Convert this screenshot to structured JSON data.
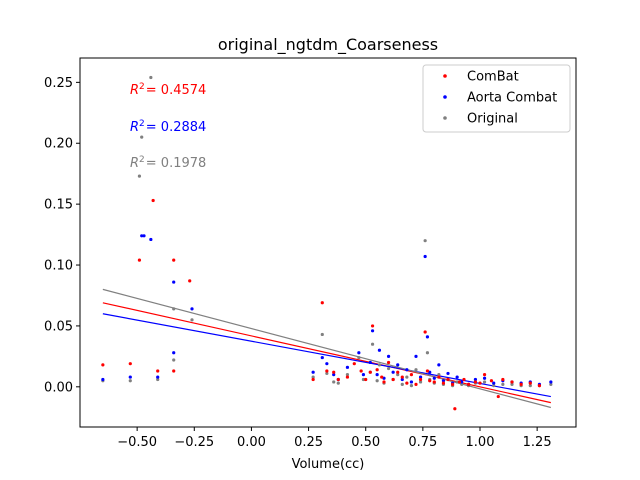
{
  "chart_data": {
    "type": "scatter",
    "title": "original_ngtdm_Coarseness",
    "xlabel": "Volume(cc)",
    "ylabel": "",
    "xlim": [
      -0.75,
      1.42
    ],
    "ylim": [
      -0.033,
      0.27
    ],
    "x_ticks": [
      -0.5,
      -0.25,
      0.0,
      0.25,
      0.5,
      0.75,
      1.0,
      1.25
    ],
    "x_tick_labels": [
      "−0.50",
      "−0.25",
      "0.00",
      "0.25",
      "0.50",
      "0.75",
      "1.00",
      "1.25"
    ],
    "y_ticks": [
      0.0,
      0.05,
      0.1,
      0.15,
      0.2,
      0.25
    ],
    "y_tick_labels": [
      "0.00",
      "0.05",
      "0.10",
      "0.15",
      "0.20",
      "0.25"
    ],
    "grid": false,
    "legend_position": "top-right",
    "r2_annotations": [
      {
        "series": "ComBat",
        "text": "= 0.4574"
      },
      {
        "series": "Aorta Combat",
        "text": "= 0.2884"
      },
      {
        "series": "Original",
        "text": "= 0.1978"
      }
    ],
    "series": [
      {
        "name": "ComBat",
        "color": "#ff0000",
        "fit": {
          "x": [
            -0.65,
            1.31
          ],
          "y": [
            0.069,
            -0.013
          ]
        },
        "points": [
          [
            -0.65,
            0.018
          ],
          [
            -0.53,
            0.019
          ],
          [
            -0.49,
            0.104
          ],
          [
            -0.43,
            0.153
          ],
          [
            -0.41,
            0.013
          ],
          [
            -0.34,
            0.104
          ],
          [
            -0.34,
            0.013
          ],
          [
            -0.27,
            0.087
          ],
          [
            0.27,
            0.006
          ],
          [
            0.31,
            0.069
          ],
          [
            0.33,
            0.013
          ],
          [
            0.36,
            0.012
          ],
          [
            0.38,
            0.006
          ],
          [
            0.42,
            0.008
          ],
          [
            0.45,
            0.019
          ],
          [
            0.48,
            0.013
          ],
          [
            0.5,
            0.006
          ],
          [
            0.52,
            0.012
          ],
          [
            0.53,
            0.05
          ],
          [
            0.55,
            0.014
          ],
          [
            0.57,
            0.008
          ],
          [
            0.58,
            0.004
          ],
          [
            0.6,
            0.02
          ],
          [
            0.62,
            0.006
          ],
          [
            0.64,
            0.012
          ],
          [
            0.66,
            0.008
          ],
          [
            0.68,
            0.003
          ],
          [
            0.7,
            0.01
          ],
          [
            0.72,
            0.002
          ],
          [
            0.74,
            0.006
          ],
          [
            0.76,
            0.045
          ],
          [
            0.77,
            0.013
          ],
          [
            0.78,
            0.005
          ],
          [
            0.8,
            0.004
          ],
          [
            0.82,
            0.008
          ],
          [
            0.84,
            0.003
          ],
          [
            0.86,
            0.006
          ],
          [
            0.88,
            0.002
          ],
          [
            0.89,
            -0.018
          ],
          [
            0.91,
            0.004
          ],
          [
            0.93,
            0.006
          ],
          [
            0.95,
            0.002
          ],
          [
            0.98,
            0.004
          ],
          [
            1.0,
            0.003
          ],
          [
            1.02,
            0.01
          ],
          [
            1.05,
            0.005
          ],
          [
            1.08,
            -0.008
          ],
          [
            1.1,
            0.006
          ],
          [
            1.14,
            0.004
          ],
          [
            1.18,
            0.002
          ],
          [
            1.22,
            0.003
          ],
          [
            1.26,
            0.001
          ]
        ]
      },
      {
        "name": "Aorta Combat",
        "color": "#0000ff",
        "fit": {
          "x": [
            -0.65,
            1.31
          ],
          "y": [
            0.06,
            -0.008
          ]
        },
        "points": [
          [
            -0.65,
            0.006
          ],
          [
            -0.53,
            0.008
          ],
          [
            -0.48,
            0.124
          ],
          [
            -0.47,
            0.124
          ],
          [
            -0.44,
            0.121
          ],
          [
            -0.41,
            0.008
          ],
          [
            -0.34,
            0.086
          ],
          [
            -0.34,
            0.028
          ],
          [
            -0.26,
            0.064
          ],
          [
            0.27,
            0.012
          ],
          [
            0.31,
            0.024
          ],
          [
            0.33,
            0.019
          ],
          [
            0.36,
            0.01
          ],
          [
            0.38,
            0.006
          ],
          [
            0.42,
            0.016
          ],
          [
            0.47,
            0.028
          ],
          [
            0.49,
            0.01
          ],
          [
            0.52,
            0.02
          ],
          [
            0.53,
            0.046
          ],
          [
            0.55,
            0.01
          ],
          [
            0.56,
            0.03
          ],
          [
            0.58,
            0.007
          ],
          [
            0.6,
            0.025
          ],
          [
            0.62,
            0.012
          ],
          [
            0.64,
            0.018
          ],
          [
            0.66,
            0.006
          ],
          [
            0.68,
            0.014
          ],
          [
            0.7,
            0.004
          ],
          [
            0.72,
            0.025
          ],
          [
            0.74,
            0.008
          ],
          [
            0.76,
            0.107
          ],
          [
            0.77,
            0.041
          ],
          [
            0.78,
            0.012
          ],
          [
            0.8,
            0.007
          ],
          [
            0.82,
            0.018
          ],
          [
            0.84,
            0.005
          ],
          [
            0.86,
            0.011
          ],
          [
            0.88,
            0.003
          ],
          [
            0.9,
            0.008
          ],
          [
            0.92,
            0.004
          ],
          [
            0.95,
            0.002
          ],
          [
            0.98,
            0.006
          ],
          [
            1.02,
            0.007
          ],
          [
            1.06,
            0.003
          ],
          [
            1.1,
            0.005
          ],
          [
            1.14,
            0.004
          ],
          [
            1.18,
            0.003
          ],
          [
            1.22,
            0.004
          ],
          [
            1.26,
            0.002
          ],
          [
            1.31,
            0.004
          ]
        ]
      },
      {
        "name": "Original",
        "color": "#808080",
        "fit": {
          "x": [
            -0.65,
            1.31
          ],
          "y": [
            0.08,
            -0.017
          ]
        },
        "points": [
          [
            -0.65,
            0.005
          ],
          [
            -0.53,
            0.005
          ],
          [
            -0.49,
            0.173
          ],
          [
            -0.48,
            0.205
          ],
          [
            -0.44,
            0.254
          ],
          [
            -0.41,
            0.006
          ],
          [
            -0.34,
            0.064
          ],
          [
            -0.34,
            0.022
          ],
          [
            -0.26,
            0.055
          ],
          [
            0.27,
            0.008
          ],
          [
            0.31,
            0.043
          ],
          [
            0.33,
            0.011
          ],
          [
            0.36,
            0.004
          ],
          [
            0.38,
            0.003
          ],
          [
            0.42,
            0.01
          ],
          [
            0.47,
            0.024
          ],
          [
            0.49,
            0.006
          ],
          [
            0.52,
            0.012
          ],
          [
            0.53,
            0.035
          ],
          [
            0.55,
            0.005
          ],
          [
            0.56,
            0.018
          ],
          [
            0.58,
            0.003
          ],
          [
            0.6,
            0.015
          ],
          [
            0.62,
            0.006
          ],
          [
            0.64,
            0.01
          ],
          [
            0.66,
            0.002
          ],
          [
            0.68,
            0.008
          ],
          [
            0.7,
            0.001
          ],
          [
            0.72,
            0.014
          ],
          [
            0.74,
            0.004
          ],
          [
            0.76,
            0.12
          ],
          [
            0.77,
            0.028
          ],
          [
            0.78,
            0.006
          ],
          [
            0.8,
            0.003
          ],
          [
            0.82,
            0.01
          ],
          [
            0.84,
            0.002
          ],
          [
            0.86,
            0.006
          ],
          [
            0.88,
            0.001
          ],
          [
            0.9,
            0.004
          ],
          [
            0.92,
            0.002
          ],
          [
            0.95,
            0.001
          ],
          [
            0.98,
            0.003
          ],
          [
            1.02,
            0.004
          ],
          [
            1.06,
            0.001
          ],
          [
            1.1,
            0.002
          ],
          [
            1.14,
            0.002
          ],
          [
            1.18,
            0.001
          ],
          [
            1.22,
            0.001
          ],
          [
            1.26,
            0.001
          ],
          [
            1.31,
            0.002
          ]
        ]
      }
    ]
  }
}
